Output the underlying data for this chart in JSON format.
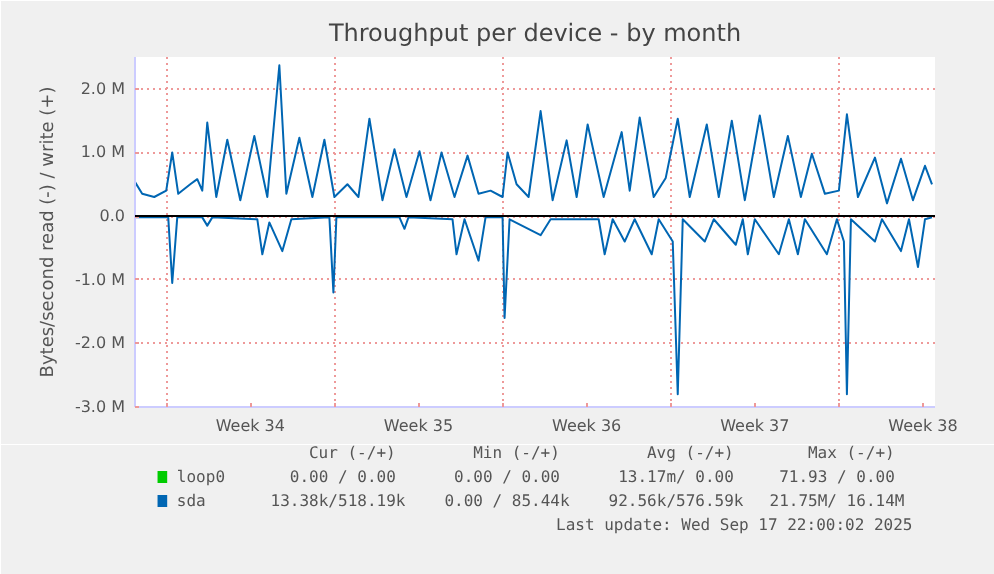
{
  "chart_data": {
    "type": "line",
    "title": "Throughput per device - by month",
    "ylabel": "Bytes/second read (-) / write (+)",
    "xlim": [
      "2025-08-16T16:48",
      "2025-09-19T00:00"
    ],
    "ylim": [
      -3000000,
      2500000
    ],
    "xticks": [
      {
        "value": "2025-08-18",
        "label": null
      },
      {
        "value": "2025-08-21T12:00",
        "label": "Week 34"
      },
      {
        "value": "2025-08-25",
        "label": null
      },
      {
        "value": "2025-08-28T12:00",
        "label": "Week 35"
      },
      {
        "value": "2025-09-01",
        "label": null
      },
      {
        "value": "2025-09-04T12:00",
        "label": "Week 36"
      },
      {
        "value": "2025-09-08",
        "label": null
      },
      {
        "value": "2025-09-11T12:00",
        "label": "Week 37"
      },
      {
        "value": "2025-09-15",
        "label": null
      },
      {
        "value": "2025-09-18T12:00",
        "label": "Week 38"
      }
    ],
    "yticks": [
      {
        "value": -3000000,
        "label": "-3.0 M"
      },
      {
        "value": -2000000,
        "label": "-2.0 M"
      },
      {
        "value": -1000000,
        "label": "-1.0 M"
      },
      {
        "value": 0,
        "label": "0.0"
      },
      {
        "value": 1000000,
        "label": "1.0 M"
      },
      {
        "value": 2000000,
        "label": "2.0 M"
      }
    ],
    "grid": true,
    "legend": "bottom left",
    "ref_lines": [
      {
        "axis": "y",
        "value": 0,
        "color": "#000000"
      }
    ],
    "series": [
      {
        "name": "loop0",
        "color": "#00cc00"
      },
      {
        "name": "sda",
        "color": "#0066b3",
        "x": [
          "2025-08-16T17:00",
          "2025-08-17T00:00",
          "2025-08-17T12:00",
          "2025-08-18T00:00",
          "2025-08-18T06:00",
          "2025-08-18T12:00",
          "2025-08-19T00:00",
          "2025-08-19T07:00",
          "2025-08-19T12:00",
          "2025-08-19T17:00",
          "2025-08-20T02:00",
          "2025-08-20T13:00",
          "2025-08-21T02:00",
          "2025-08-21T16:00",
          "2025-08-22T05:00",
          "2025-08-22T17:00",
          "2025-08-23T00:00",
          "2025-08-23T13:00",
          "2025-08-24T02:00",
          "2025-08-24T14:00",
          "2025-08-25T00:00",
          "2025-08-25T13:00",
          "2025-08-26T00:00",
          "2025-08-26T11:00",
          "2025-08-27T00:00",
          "2025-08-27T12:00",
          "2025-08-28T00:00",
          "2025-08-28T13:00",
          "2025-08-29T00:00",
          "2025-08-29T11:00",
          "2025-08-30T00:00",
          "2025-08-30T13:00",
          "2025-08-31T00:00",
          "2025-08-31T12:00",
          "2025-09-01T00:00",
          "2025-09-01T05:00",
          "2025-09-01T14:00",
          "2025-09-02T02:00",
          "2025-09-02T14:00",
          "2025-09-03T02:00",
          "2025-09-03T16:00",
          "2025-09-04T02:00",
          "2025-09-04T13:00",
          "2025-09-05T05:00",
          "2025-09-05T23:00",
          "2025-09-06T07:00",
          "2025-09-06T17:00",
          "2025-09-07T07:00",
          "2025-09-07T19:00",
          "2025-09-08T07:00",
          "2025-09-08T19:00",
          "2025-09-09T12:00",
          "2025-09-10T00:00",
          "2025-09-10T13:00",
          "2025-09-11T02:00",
          "2025-09-11T17:00",
          "2025-09-12T07:00",
          "2025-09-12T21:00",
          "2025-09-13T10:00",
          "2025-09-13T21:00",
          "2025-09-14T10:00",
          "2025-09-15T00:00",
          "2025-09-15T08:00",
          "2025-09-15T19:00",
          "2025-09-16T12:00",
          "2025-09-17T00:00",
          "2025-09-17T14:00",
          "2025-09-18T02:00",
          "2025-09-18T14:00",
          "2025-09-18T21:00"
        ],
        "values": [
          530000,
          350000,
          300000,
          400000,
          1000000,
          350000,
          500000,
          580000,
          400000,
          1470000,
          300000,
          1200000,
          250000,
          1260000,
          300000,
          2370000,
          350000,
          1230000,
          300000,
          1200000,
          300000,
          500000,
          300000,
          1530000,
          250000,
          1050000,
          300000,
          1020000,
          250000,
          1000000,
          300000,
          950000,
          350000,
          400000,
          300000,
          1000000,
          500000,
          300000,
          1650000,
          250000,
          1190000,
          300000,
          1440000,
          300000,
          1320000,
          400000,
          1550000,
          300000,
          600000,
          1530000,
          300000,
          1440000,
          300000,
          1500000,
          250000,
          1580000,
          300000,
          1260000,
          300000,
          980000,
          350000,
          400000,
          1600000,
          300000,
          920000,
          200000,
          900000,
          250000,
          790000,
          500000
        ]
      },
      {
        "color": "#0066b3",
        "x": [
          "2025-08-16T17:00",
          "2025-08-18T02:00",
          "2025-08-18T06:00",
          "2025-08-18T11:00",
          "2025-08-19T12:00",
          "2025-08-19T17:00",
          "2025-08-19T22:00",
          "2025-08-21T19:00",
          "2025-08-22T00:00",
          "2025-08-22T07:00",
          "2025-08-22T20:00",
          "2025-08-23T05:00",
          "2025-08-24T19:00",
          "2025-08-24T23:00",
          "2025-08-25T02:00",
          "2025-08-27T17:00",
          "2025-08-27T22:00",
          "2025-08-28T02:00",
          "2025-08-29T22:00",
          "2025-08-30T02:00",
          "2025-08-30T10:00",
          "2025-08-31T00:00",
          "2025-08-31T07:00",
          "2025-09-01T00:00",
          "2025-09-01T02:00",
          "2025-09-01T07:00",
          "2025-09-02T14:00",
          "2025-09-03T00:00",
          "2025-09-05T00:00",
          "2025-09-05T06:00",
          "2025-09-05T14:00",
          "2025-09-06T02:00",
          "2025-09-06T12:00",
          "2025-09-07T05:00",
          "2025-09-07T12:00",
          "2025-09-08T02:00",
          "2025-09-08T07:00",
          "2025-09-08T12:00",
          "2025-09-09T10:00",
          "2025-09-09T19:00",
          "2025-09-10T17:00",
          "2025-09-11T00:00",
          "2025-09-11T05:00",
          "2025-09-11T12:00",
          "2025-09-12T12:00",
          "2025-09-12T22:00",
          "2025-09-13T07:00",
          "2025-09-13T14:00",
          "2025-09-14T12:00",
          "2025-09-14T22:00",
          "2025-09-15T05:00",
          "2025-09-15T08:00",
          "2025-09-15T12:00",
          "2025-09-16T12:00",
          "2025-09-16T19:00",
          "2025-09-17T14:00",
          "2025-09-17T22:00",
          "2025-09-18T07:00",
          "2025-09-18T14:00",
          "2025-09-18T21:00"
        ],
        "values": [
          -20000,
          -20000,
          -1050000,
          -20000,
          -20000,
          -150000,
          -20000,
          -50000,
          -600000,
          -100000,
          -550000,
          -50000,
          -20000,
          -1200000,
          -20000,
          -20000,
          -200000,
          -20000,
          -50000,
          -600000,
          -50000,
          -700000,
          -20000,
          -20000,
          -1600000,
          -50000,
          -300000,
          -50000,
          -50000,
          -600000,
          -50000,
          -400000,
          -50000,
          -600000,
          -50000,
          -400000,
          -2800000,
          -50000,
          -400000,
          -50000,
          -450000,
          -50000,
          -600000,
          -50000,
          -600000,
          -50000,
          -600000,
          -50000,
          -600000,
          -50000,
          -400000,
          -2800000,
          -50000,
          -400000,
          -50000,
          -550000,
          -50000,
          -800000,
          -50000,
          -20000
        ]
      }
    ],
    "annotations": [
      "Cur (-/+)",
      "Min (-/+)",
      "Avg (-/+)",
      "Max (-/+)",
      "0.00 /  0.00",
      "0.00 /  0.00",
      "13.17m/  0.00",
      "71.93 /  0.00",
      "13.38k/518.19k",
      "0.00 / 85.44k",
      "92.56k/576.59k",
      "21.75M/ 16.14M",
      "Last update: Wed Sep 17 22:00:02 2025"
    ]
  }
}
